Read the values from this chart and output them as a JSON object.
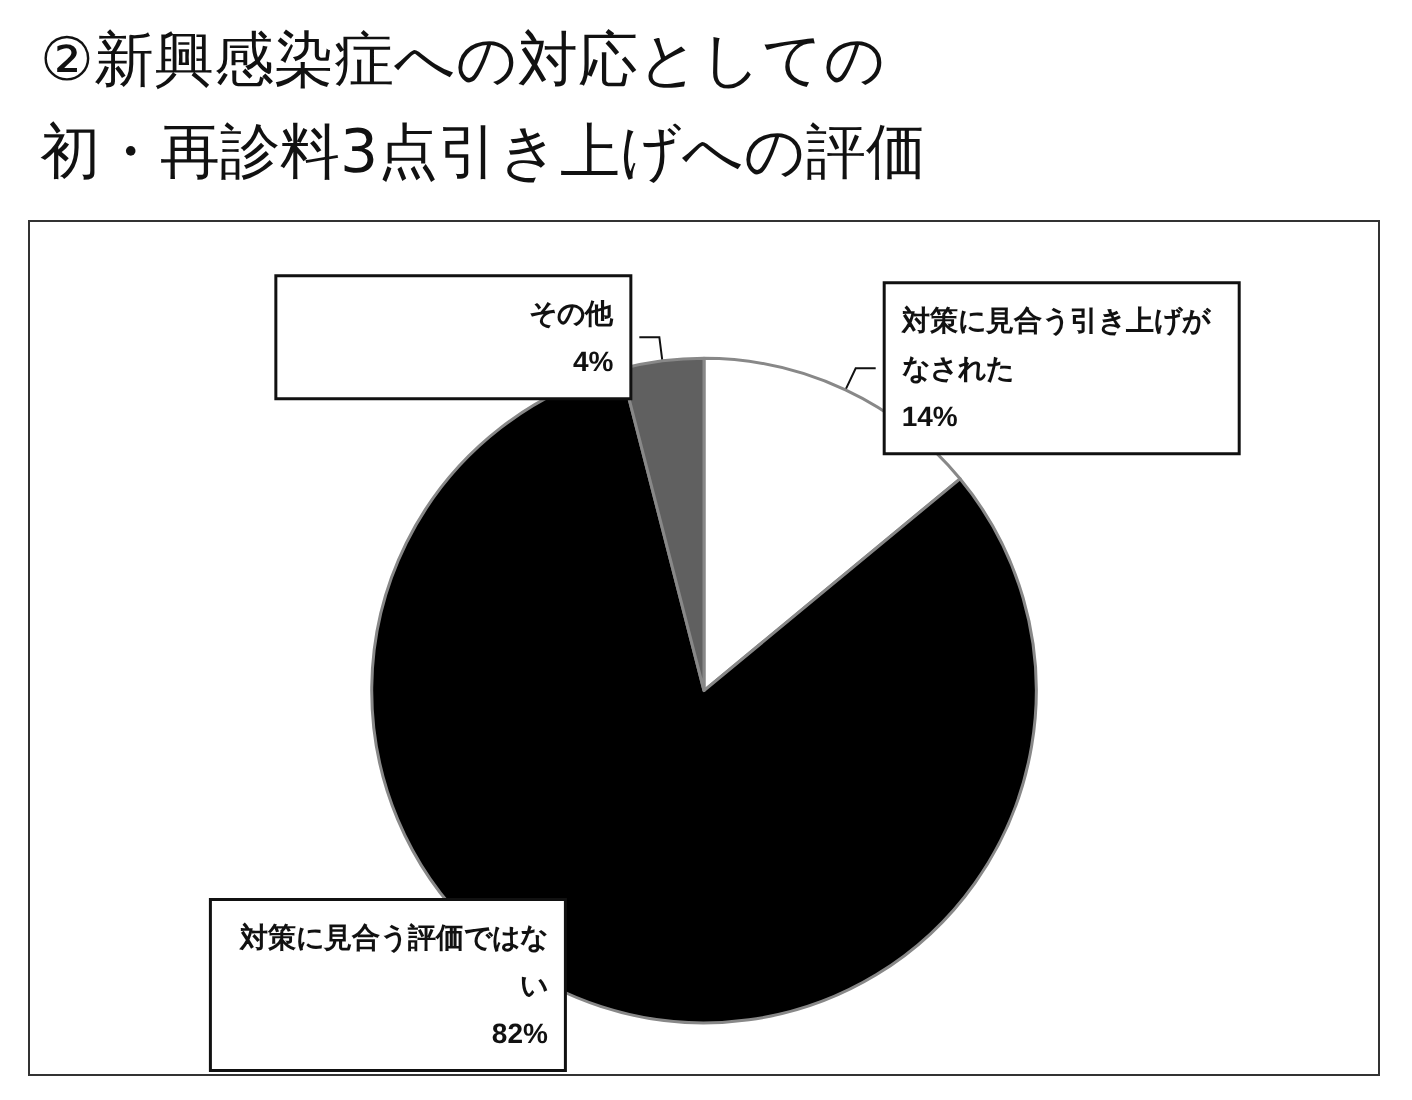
{
  "chart_data": {
    "type": "pie",
    "title": "②新興感染症への対応としての初・再診料3点引き上げへの評価",
    "categories": [
      "対策に見合う引き上げがなされた",
      "対策に見合う評価ではない",
      "その他"
    ],
    "values": [
      14,
      82,
      4
    ],
    "colors": [
      "#ffffff",
      "#000000",
      "#606060"
    ],
    "value_labels": [
      "14%",
      "82%",
      "4%"
    ]
  }
}
